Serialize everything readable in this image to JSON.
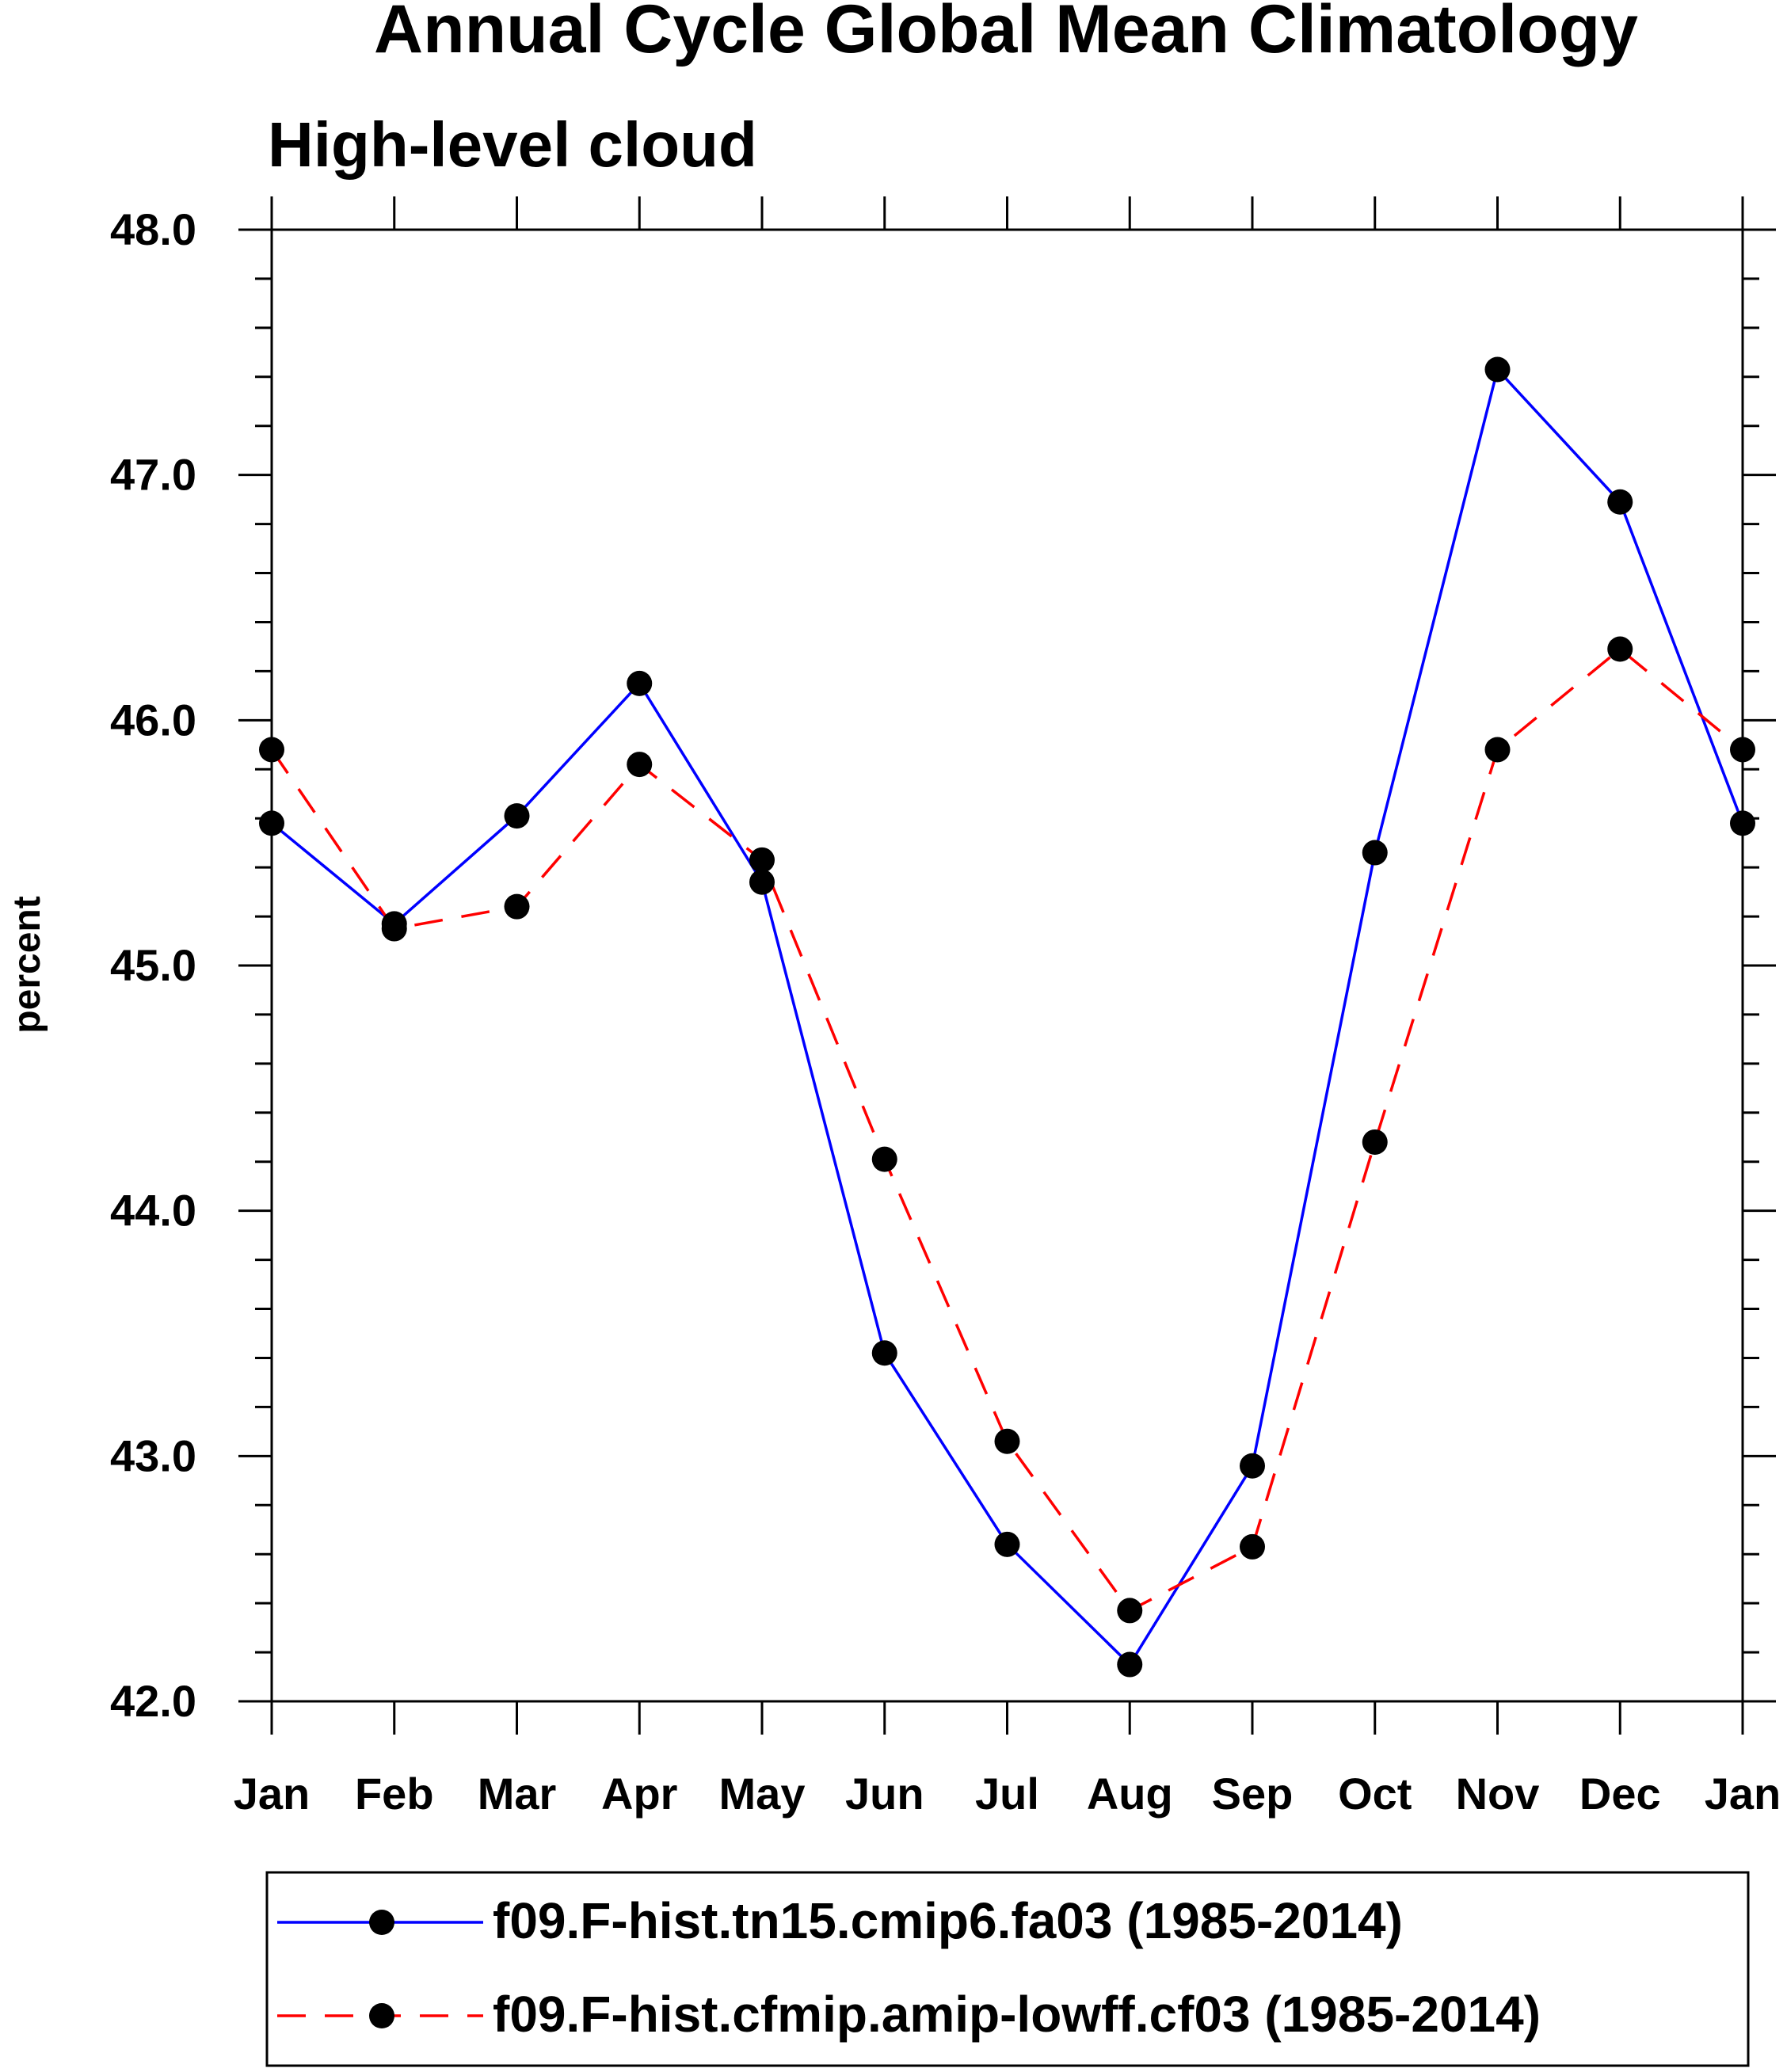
{
  "chart_data": {
    "type": "line",
    "title": "Annual Cycle Global Mean Climatology",
    "subtitle": "High-level cloud",
    "xlabel": "",
    "ylabel": "percent",
    "categories": [
      "Jan",
      "Feb",
      "Mar",
      "Apr",
      "May",
      "Jun",
      "Jul",
      "Aug",
      "Sep",
      "Oct",
      "Nov",
      "Dec",
      "Jan"
    ],
    "ylim": [
      42.0,
      48.0
    ],
    "yticks": [
      "42.0",
      "43.0",
      "44.0",
      "45.0",
      "46.0",
      "47.0",
      "48.0"
    ],
    "grid": false,
    "legend_position": "bottom",
    "series": [
      {
        "name": "f09.F-hist.tn15.cmip6.fa03 (1985-2014)",
        "color": "#0000ff",
        "line_style": "solid",
        "values": [
          45.58,
          45.17,
          45.61,
          46.15,
          45.34,
          43.42,
          42.64,
          42.15,
          42.96,
          45.46,
          47.43,
          46.89,
          45.58
        ]
      },
      {
        "name": "f09.F-hist.cfmip.amip-lowff.cf03 (1985-2014)",
        "color": "#ff0000",
        "line_style": "dashed",
        "values": [
          45.88,
          45.15,
          45.24,
          45.82,
          45.43,
          44.21,
          43.06,
          42.37,
          42.63,
          44.28,
          45.88,
          46.29,
          45.88
        ]
      }
    ]
  }
}
